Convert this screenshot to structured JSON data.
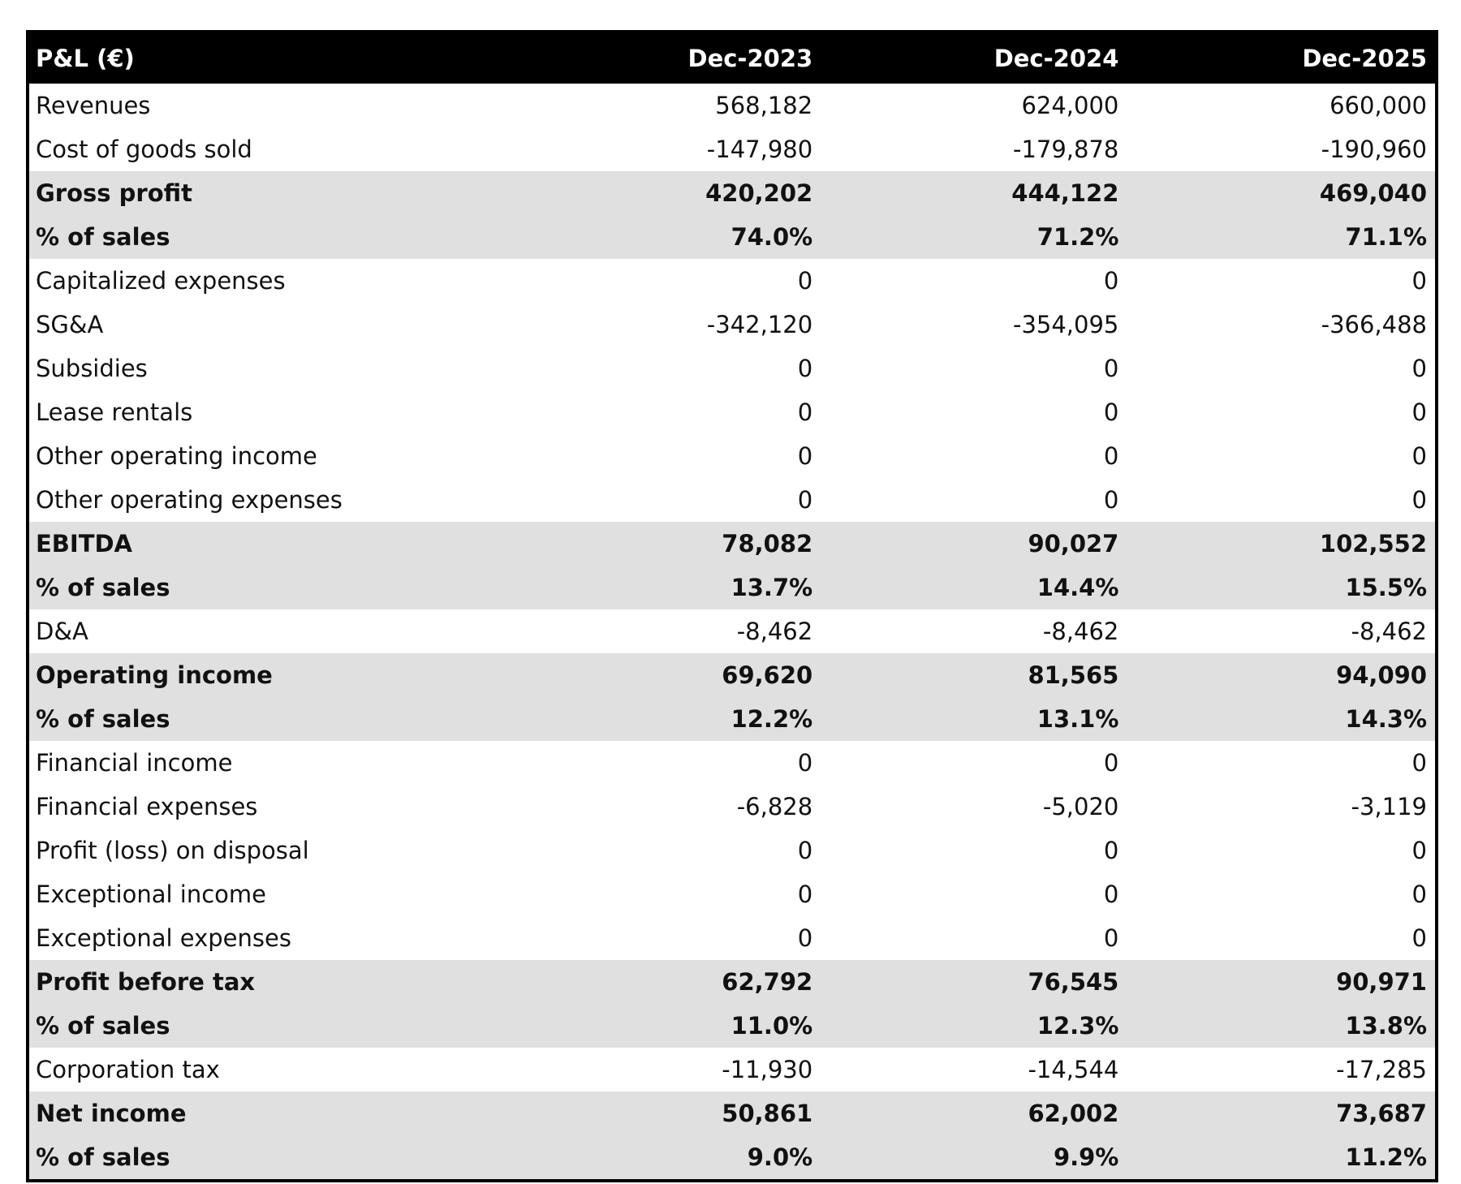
{
  "table": {
    "header": [
      "P&L (€)",
      "Dec-2023",
      "Dec-2024",
      "Dec-2025"
    ],
    "rows": [
      {
        "cells": [
          "Revenues",
          "568,182",
          "624,000",
          "660,000"
        ],
        "highlight": false
      },
      {
        "cells": [
          "Cost of goods sold",
          "-147,980",
          "-179,878",
          "-190,960"
        ],
        "highlight": false
      },
      {
        "cells": [
          "Gross profit",
          "420,202",
          "444,122",
          "469,040"
        ],
        "highlight": true
      },
      {
        "cells": [
          "% of sales",
          "74.0%",
          "71.2%",
          "71.1%"
        ],
        "highlight": true
      },
      {
        "cells": [
          "Capitalized expenses",
          "0",
          "0",
          "0"
        ],
        "highlight": false
      },
      {
        "cells": [
          "SG&A",
          "-342,120",
          "-354,095",
          "-366,488"
        ],
        "highlight": false
      },
      {
        "cells": [
          "Subsidies",
          "0",
          "0",
          "0"
        ],
        "highlight": false
      },
      {
        "cells": [
          "Lease rentals",
          "0",
          "0",
          "0"
        ],
        "highlight": false
      },
      {
        "cells": [
          "Other operating income",
          "0",
          "0",
          "0"
        ],
        "highlight": false
      },
      {
        "cells": [
          "Other operating expenses",
          "0",
          "0",
          "0"
        ],
        "highlight": false
      },
      {
        "cells": [
          "EBITDA",
          "78,082",
          "90,027",
          "102,552"
        ],
        "highlight": true
      },
      {
        "cells": [
          "% of sales",
          "13.7%",
          "14.4%",
          "15.5%"
        ],
        "highlight": true
      },
      {
        "cells": [
          "D&A",
          "-8,462",
          "-8,462",
          "-8,462"
        ],
        "highlight": false
      },
      {
        "cells": [
          "Operating income",
          "69,620",
          "81,565",
          "94,090"
        ],
        "highlight": true
      },
      {
        "cells": [
          "% of sales",
          "12.2%",
          "13.1%",
          "14.3%"
        ],
        "highlight": true
      },
      {
        "cells": [
          "Financial income",
          "0",
          "0",
          "0"
        ],
        "highlight": false
      },
      {
        "cells": [
          "Financial expenses",
          "-6,828",
          "-5,020",
          "-3,119"
        ],
        "highlight": false
      },
      {
        "cells": [
          "Profit (loss) on disposal",
          "0",
          "0",
          "0"
        ],
        "highlight": false
      },
      {
        "cells": [
          "Exceptional income",
          "0",
          "0",
          "0"
        ],
        "highlight": false
      },
      {
        "cells": [
          "Exceptional expenses",
          "0",
          "0",
          "0"
        ],
        "highlight": false
      },
      {
        "cells": [
          "Profit before tax",
          "62,792",
          "76,545",
          "90,971"
        ],
        "highlight": true
      },
      {
        "cells": [
          "% of sales",
          "11.0%",
          "12.3%",
          "13.8%"
        ],
        "highlight": true
      },
      {
        "cells": [
          "Corporation tax",
          "-11,930",
          "-14,544",
          "-17,285"
        ],
        "highlight": false
      },
      {
        "cells": [
          "Net income",
          "50,861",
          "62,002",
          "73,687"
        ],
        "highlight": true
      },
      {
        "cells": [
          "% of sales",
          "9.0%",
          "9.9%",
          "11.2%"
        ],
        "highlight": true
      }
    ]
  }
}
